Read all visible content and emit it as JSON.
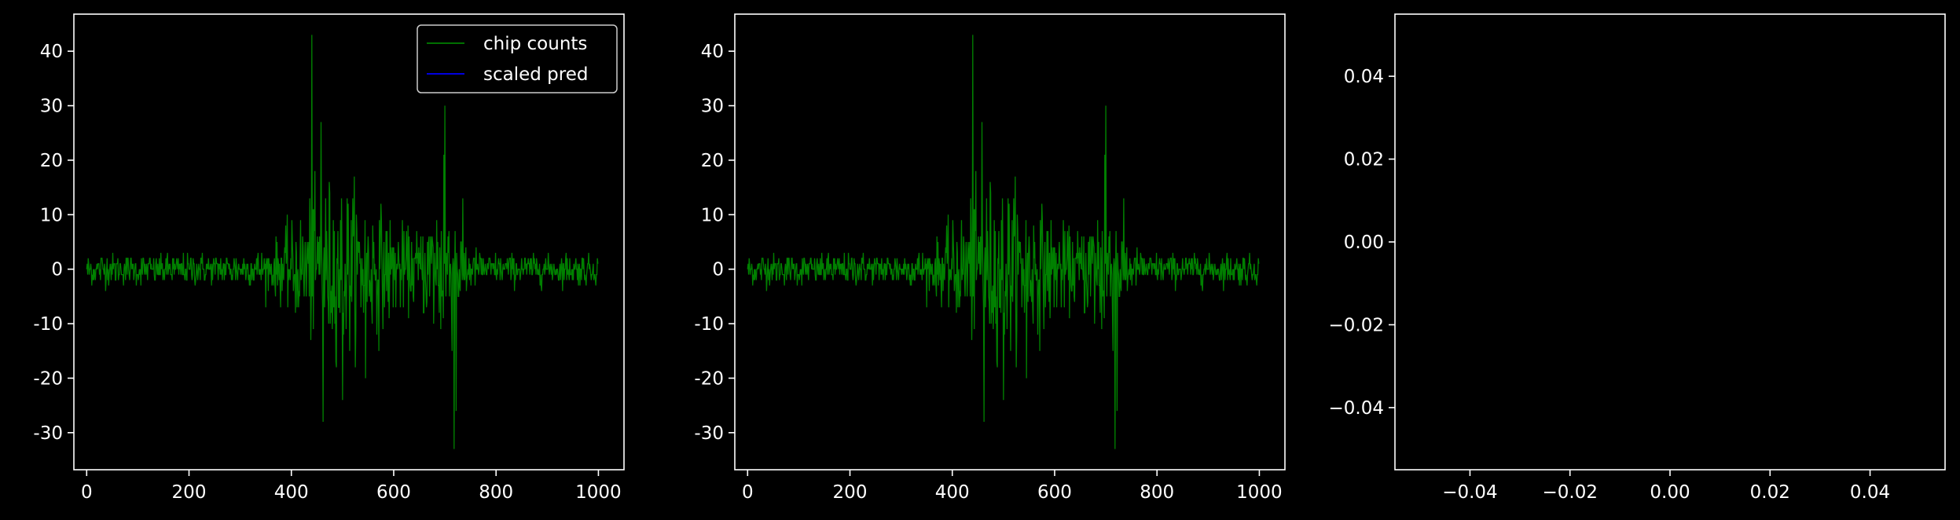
{
  "chart_data": [
    {
      "type": "line",
      "title": "",
      "xlabel": "",
      "ylabel": "",
      "xlim": [
        -25,
        1050
      ],
      "ylim": [
        -36.8,
        46.8
      ],
      "xticks": [
        0,
        200,
        400,
        600,
        800,
        1000
      ],
      "yticks": [
        -30,
        -20,
        -10,
        0,
        10,
        20,
        30,
        40
      ],
      "legend": {
        "position": "upper right",
        "entries": [
          "chip counts",
          "scaled pred"
        ]
      },
      "series": [
        {
          "name": "chip counts",
          "color": "#008000",
          "n_points": 1000,
          "peaks": [
            {
              "x": 440,
              "y": 43
            },
            {
              "x": 458,
              "y": 27
            },
            {
              "x": 462,
              "y": -28
            },
            {
              "x": 700,
              "y": 30
            },
            {
              "x": 698,
              "y": 21
            },
            {
              "x": 718,
              "y": -33
            },
            {
              "x": 722,
              "y": -26
            },
            {
              "x": 500,
              "y": -24
            },
            {
              "x": 545,
              "y": -20
            }
          ]
        },
        {
          "name": "scaled pred",
          "color": "#0000ff",
          "values": []
        }
      ]
    },
    {
      "type": "line",
      "title": "",
      "xlabel": "",
      "ylabel": "",
      "xlim": [
        -25,
        1050
      ],
      "ylim": [
        -36.8,
        46.8
      ],
      "xticks": [
        0,
        200,
        400,
        600,
        800,
        1000
      ],
      "yticks": [
        -30,
        -20,
        -10,
        0,
        10,
        20,
        30,
        40
      ],
      "series": [
        {
          "color": "#008000",
          "n_points": 1000,
          "peaks": [
            {
              "x": 440,
              "y": 43
            },
            {
              "x": 458,
              "y": 27
            },
            {
              "x": 462,
              "y": -28
            },
            {
              "x": 700,
              "y": 30
            },
            {
              "x": 698,
              "y": 21
            },
            {
              "x": 718,
              "y": -33
            },
            {
              "x": 722,
              "y": -26
            },
            {
              "x": 500,
              "y": -24
            },
            {
              "x": 545,
              "y": -20
            }
          ]
        }
      ]
    },
    {
      "type": "line",
      "title": "",
      "xlabel": "",
      "ylabel": "",
      "xlim": [
        -0.055,
        0.055
      ],
      "ylim": [
        -0.055,
        0.055
      ],
      "xticks": [
        "−0.04",
        "−0.02",
        "0.00",
        "0.02",
        "0.04"
      ],
      "yticks": [
        "−0.04",
        "−0.02",
        "0.00",
        "0.02",
        "0.04"
      ],
      "series": []
    }
  ],
  "colors": {
    "background": "#000000",
    "axes": "#ffffff",
    "series_green": "#008000",
    "series_blue": "#0000ff"
  }
}
